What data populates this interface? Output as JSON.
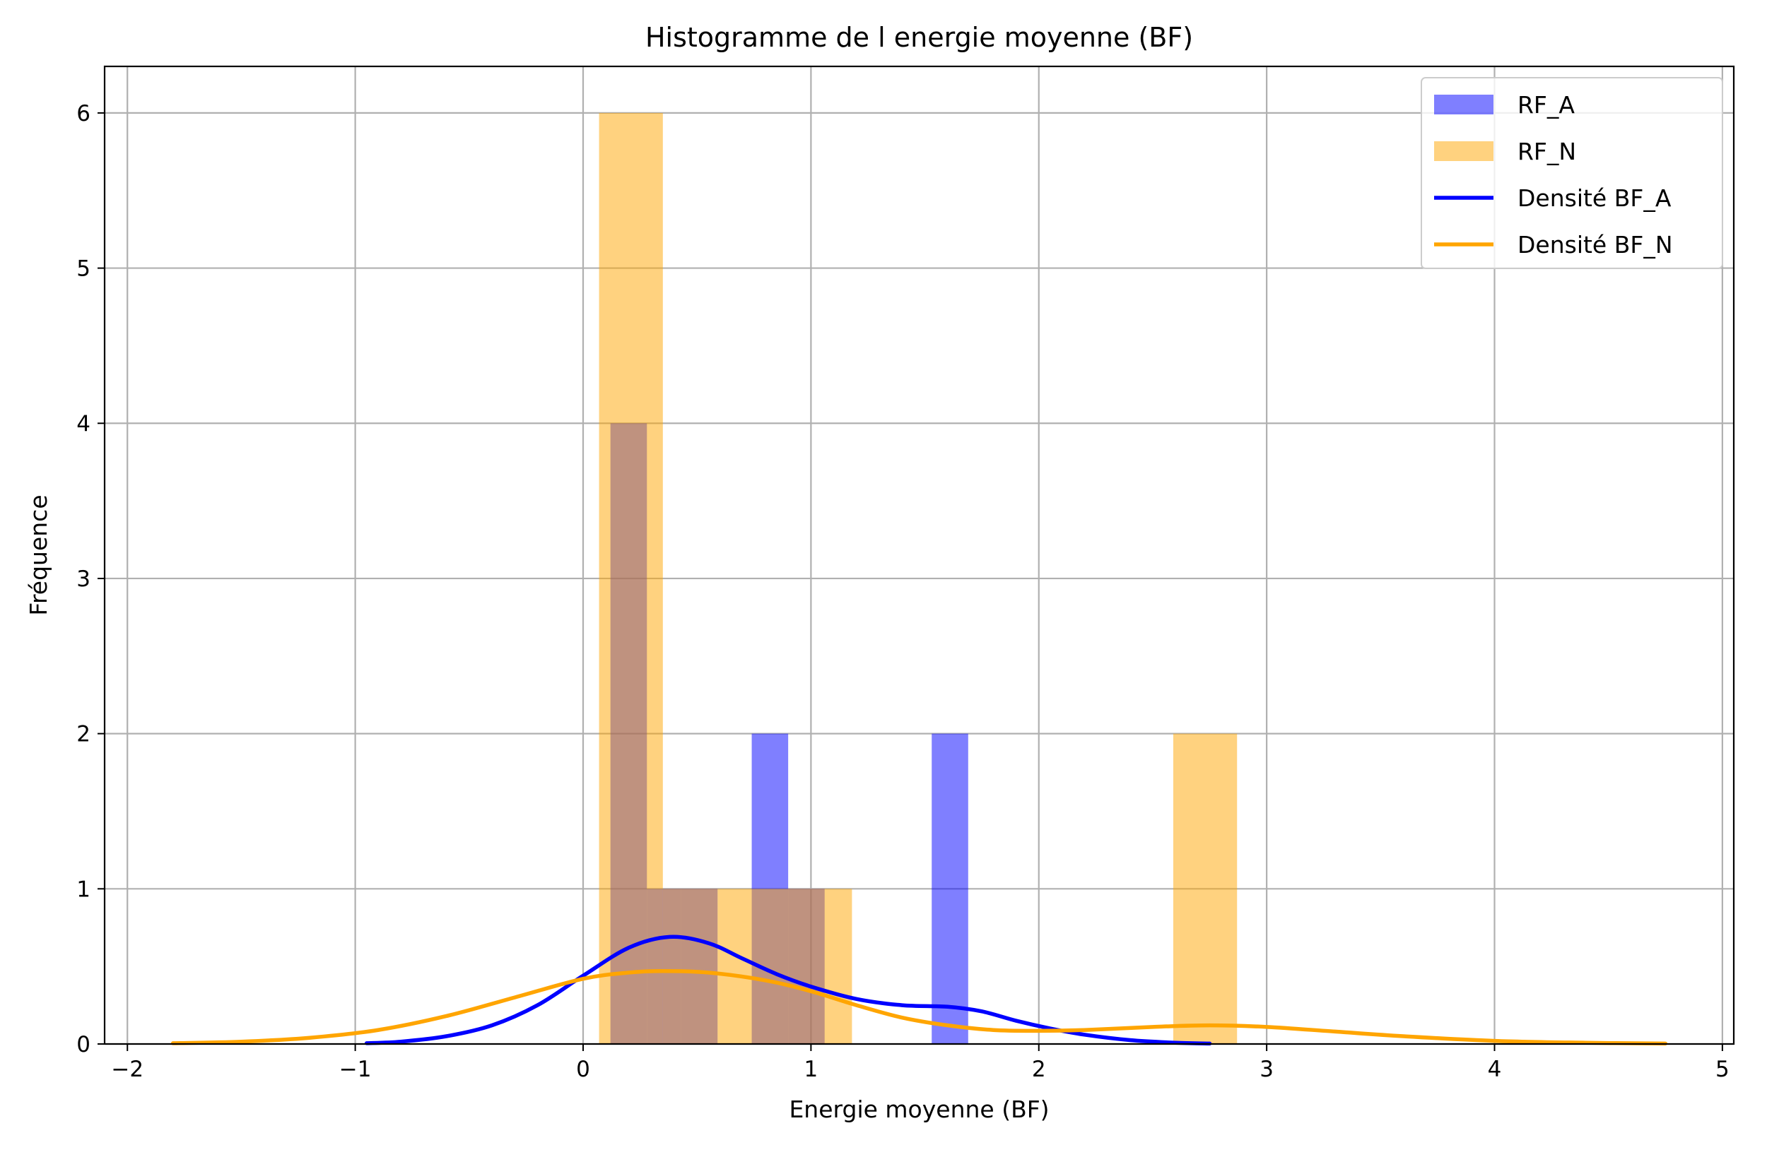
{
  "chart_data": {
    "type": "bar",
    "title": "Histogramme de l energie moyenne (BF)",
    "xlabel": "Energie moyenne (BF)",
    "ylabel": "Fréquence",
    "xlim": [
      -2.1,
      5.05
    ],
    "ylim": [
      0,
      6.3
    ],
    "xticks": [
      -2,
      -1,
      0,
      1,
      2,
      3,
      4,
      5
    ],
    "xtick_labels": [
      "−2",
      "−1",
      "0",
      "1",
      "2",
      "3",
      "4",
      "5"
    ],
    "yticks": [
      0,
      1,
      2,
      3,
      4,
      5,
      6
    ],
    "ytick_labels": [
      "0",
      "1",
      "2",
      "3",
      "4",
      "5",
      "6"
    ],
    "grid": true,
    "legend_position": "top-right",
    "series": [
      {
        "name": "RF_A",
        "kind": "histogram",
        "color": "#0000ff",
        "opacity": 0.5,
        "bins": [
          {
            "x0": 0.12,
            "x1": 0.28,
            "count": 4
          },
          {
            "x0": 0.28,
            "x1": 0.43,
            "count": 1
          },
          {
            "x0": 0.43,
            "x1": 0.59,
            "count": 1
          },
          {
            "x0": 0.74,
            "x1": 0.9,
            "count": 2
          },
          {
            "x0": 0.9,
            "x1": 1.06,
            "count": 1
          },
          {
            "x0": 1.53,
            "x1": 1.69,
            "count": 2
          }
        ]
      },
      {
        "name": "RF_N",
        "kind": "histogram",
        "color": "#ffa500",
        "opacity": 0.5,
        "bins": [
          {
            "x0": 0.07,
            "x1": 0.35,
            "count": 6
          },
          {
            "x0": 0.35,
            "x1": 0.59,
            "count": 1
          },
          {
            "x0": 0.59,
            "x1": 1.18,
            "count": 1
          },
          {
            "x0": 2.59,
            "x1": 2.87,
            "count": 2
          }
        ]
      },
      {
        "name": "Densité BF_A",
        "kind": "line",
        "color": "#0000ff",
        "points": [
          [
            -0.95,
            0.005
          ],
          [
            -0.8,
            0.015
          ],
          [
            -0.6,
            0.05
          ],
          [
            -0.4,
            0.12
          ],
          [
            -0.2,
            0.25
          ],
          [
            0.0,
            0.44
          ],
          [
            0.2,
            0.62
          ],
          [
            0.38,
            0.69
          ],
          [
            0.55,
            0.65
          ],
          [
            0.7,
            0.55
          ],
          [
            0.85,
            0.45
          ],
          [
            1.0,
            0.37
          ],
          [
            1.2,
            0.29
          ],
          [
            1.4,
            0.25
          ],
          [
            1.6,
            0.24
          ],
          [
            1.75,
            0.21
          ],
          [
            1.9,
            0.15
          ],
          [
            2.05,
            0.1
          ],
          [
            2.2,
            0.06
          ],
          [
            2.4,
            0.025
          ],
          [
            2.6,
            0.008
          ],
          [
            2.75,
            0.003
          ]
        ]
      },
      {
        "name": "Densité BF_N",
        "kind": "line",
        "color": "#ffa500",
        "points": [
          [
            -1.8,
            0.005
          ],
          [
            -1.5,
            0.015
          ],
          [
            -1.2,
            0.04
          ],
          [
            -0.9,
            0.09
          ],
          [
            -0.6,
            0.18
          ],
          [
            -0.3,
            0.3
          ],
          [
            0.0,
            0.42
          ],
          [
            0.2,
            0.46
          ],
          [
            0.35,
            0.47
          ],
          [
            0.55,
            0.46
          ],
          [
            0.8,
            0.41
          ],
          [
            1.0,
            0.34
          ],
          [
            1.2,
            0.25
          ],
          [
            1.4,
            0.17
          ],
          [
            1.6,
            0.12
          ],
          [
            1.8,
            0.09
          ],
          [
            2.0,
            0.085
          ],
          [
            2.2,
            0.09
          ],
          [
            2.5,
            0.11
          ],
          [
            2.75,
            0.12
          ],
          [
            3.0,
            0.11
          ],
          [
            3.3,
            0.08
          ],
          [
            3.6,
            0.05
          ],
          [
            4.0,
            0.02
          ],
          [
            4.4,
            0.008
          ],
          [
            4.75,
            0.003
          ]
        ]
      }
    ]
  }
}
